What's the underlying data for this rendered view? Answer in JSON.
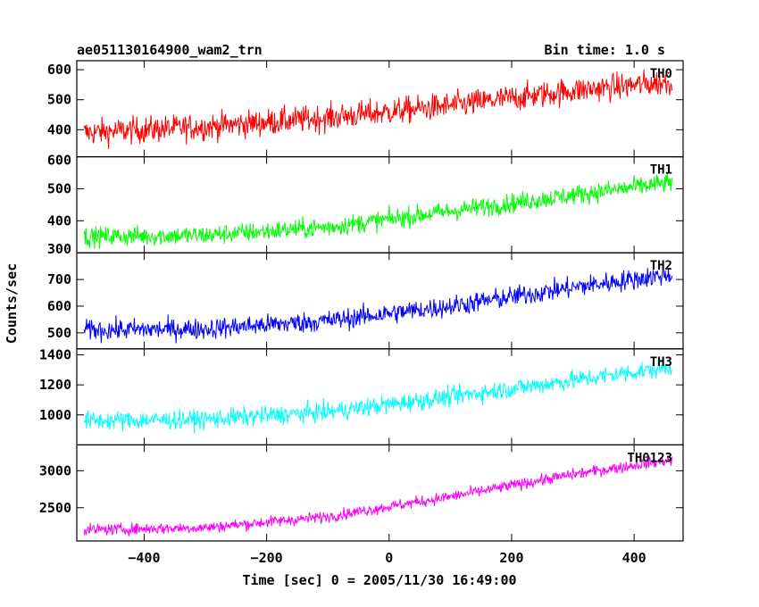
{
  "chart_data": {
    "type": "line",
    "title_left": "ae051130164900_wam2_trn",
    "title_right": "Bin time: 1.0 s",
    "xlabel": "Time [sec] 0 = 2005/11/30 16:49:00",
    "ylabel": "Counts/sec",
    "xlim": [
      -510,
      480
    ],
    "xticks": [
      -400,
      -200,
      0,
      200,
      400
    ],
    "x_range": [
      -498,
      462
    ],
    "bin_time": 1.0,
    "grid": false,
    "panels": [
      {
        "name": "TH0",
        "color": "#ff0000",
        "ylim": [
          310,
          630
        ],
        "yticks": [
          400,
          500,
          600
        ],
        "trend_x": [
          -498,
          -300,
          -100,
          100,
          300,
          462
        ],
        "trend_y": [
          390,
          410,
          440,
          480,
          530,
          560
        ],
        "noise": 32
      },
      {
        "name": "TH1",
        "color": "#00ff00",
        "ylim": [
          300,
          600
        ],
        "yticks": [
          300,
          400,
          500,
          600
        ],
        "trend_x": [
          -498,
          -300,
          -100,
          100,
          300,
          462
        ],
        "trend_y": [
          350,
          355,
          380,
          430,
          480,
          520
        ],
        "noise": 22
      },
      {
        "name": "TH2",
        "color": "#0000ff",
        "ylim": [
          440,
          800
        ],
        "yticks": [
          500,
          600,
          700
        ],
        "trend_x": [
          -498,
          -300,
          -100,
          100,
          300,
          462
        ],
        "trend_y": [
          510,
          515,
          545,
          600,
          670,
          720
        ],
        "noise": 28
      },
      {
        "name": "TH3",
        "color": "#00ffff",
        "ylim": [
          800,
          1440
        ],
        "yticks": [
          1000,
          1200,
          1400
        ],
        "trend_x": [
          -498,
          -300,
          -100,
          100,
          300,
          462
        ],
        "trend_y": [
          960,
          970,
          1020,
          1120,
          1230,
          1320
        ],
        "noise": 45
      },
      {
        "name": "TH0123",
        "color": "#ff00ff",
        "ylim": [
          2050,
          3350
        ],
        "yticks": [
          2500,
          3000
        ],
        "trend_x": [
          -498,
          -300,
          -100,
          100,
          300,
          462
        ],
        "trend_y": [
          2200,
          2230,
          2380,
          2650,
          2950,
          3150
        ],
        "noise": 55
      }
    ]
  }
}
